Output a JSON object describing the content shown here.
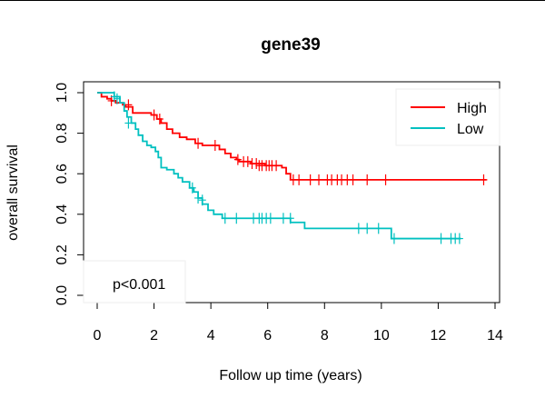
{
  "chart_data": {
    "type": "line",
    "title": "gene39",
    "xlabel": "Follow up time (years)",
    "ylabel": "overall survival",
    "xlim": [
      0,
      14
    ],
    "ylim": [
      0,
      1
    ],
    "x_ticks": [
      "0",
      "2",
      "4",
      "6",
      "8",
      "10",
      "12",
      "14"
    ],
    "y_ticks": [
      "0.0",
      "0.2",
      "0.4",
      "0.6",
      "0.8",
      "1.0"
    ],
    "grid": false,
    "legend_position": "top-right",
    "annotation": "p<0.001",
    "series": [
      {
        "name": "High",
        "color": "#ff0000",
        "steps": [
          [
            0,
            1.0
          ],
          [
            0.15,
            0.98
          ],
          [
            0.35,
            0.97
          ],
          [
            0.5,
            0.96
          ],
          [
            0.65,
            0.95
          ],
          [
            0.9,
            0.94
          ],
          [
            1.0,
            0.93
          ],
          [
            1.25,
            0.9
          ],
          [
            1.9,
            0.89
          ],
          [
            2.1,
            0.87
          ],
          [
            2.25,
            0.85
          ],
          [
            2.45,
            0.82
          ],
          [
            2.65,
            0.8
          ],
          [
            2.9,
            0.78
          ],
          [
            3.15,
            0.77
          ],
          [
            3.45,
            0.75
          ],
          [
            3.7,
            0.74
          ],
          [
            4.3,
            0.72
          ],
          [
            4.5,
            0.7
          ],
          [
            4.7,
            0.68
          ],
          [
            4.9,
            0.67
          ],
          [
            5.0,
            0.66
          ],
          [
            5.4,
            0.65
          ],
          [
            5.9,
            0.64
          ],
          [
            6.5,
            0.63
          ],
          [
            6.65,
            0.6
          ],
          [
            6.8,
            0.57
          ],
          [
            13.7,
            0.57
          ]
        ],
        "censor": [
          [
            0.5,
            0.96
          ],
          [
            1.1,
            0.94
          ],
          [
            2.0,
            0.89
          ],
          [
            2.2,
            0.87
          ],
          [
            3.55,
            0.75
          ],
          [
            4.15,
            0.74
          ],
          [
            4.95,
            0.67
          ],
          [
            5.15,
            0.66
          ],
          [
            5.3,
            0.66
          ],
          [
            5.45,
            0.65
          ],
          [
            5.6,
            0.65
          ],
          [
            5.7,
            0.64
          ],
          [
            5.8,
            0.64
          ],
          [
            5.95,
            0.64
          ],
          [
            6.05,
            0.64
          ],
          [
            6.15,
            0.64
          ],
          [
            6.3,
            0.64
          ],
          [
            6.9,
            0.57
          ],
          [
            7.1,
            0.57
          ],
          [
            7.5,
            0.57
          ],
          [
            7.8,
            0.57
          ],
          [
            8.1,
            0.57
          ],
          [
            8.25,
            0.57
          ],
          [
            8.45,
            0.57
          ],
          [
            8.6,
            0.57
          ],
          [
            8.8,
            0.57
          ],
          [
            9.0,
            0.57
          ],
          [
            9.5,
            0.57
          ],
          [
            10.15,
            0.57
          ],
          [
            13.6,
            0.57
          ]
        ]
      },
      {
        "name": "Low",
        "color": "#00c0c0",
        "steps": [
          [
            0,
            1.0
          ],
          [
            0.1,
            1.0
          ],
          [
            0.6,
            0.98
          ],
          [
            0.8,
            0.95
          ],
          [
            0.95,
            0.91
          ],
          [
            1.05,
            0.88
          ],
          [
            1.2,
            0.85
          ],
          [
            1.35,
            0.82
          ],
          [
            1.45,
            0.79
          ],
          [
            1.6,
            0.76
          ],
          [
            1.75,
            0.74
          ],
          [
            1.9,
            0.73
          ],
          [
            2.05,
            0.71
          ],
          [
            2.15,
            0.68
          ],
          [
            2.25,
            0.63
          ],
          [
            2.45,
            0.62
          ],
          [
            2.7,
            0.6
          ],
          [
            2.85,
            0.58
          ],
          [
            3.0,
            0.56
          ],
          [
            3.25,
            0.53
          ],
          [
            3.4,
            0.51
          ],
          [
            3.55,
            0.48
          ],
          [
            3.7,
            0.45
          ],
          [
            3.9,
            0.42
          ],
          [
            4.1,
            0.4
          ],
          [
            4.4,
            0.38
          ],
          [
            5.4,
            0.38
          ],
          [
            6.8,
            0.36
          ],
          [
            7.3,
            0.33
          ],
          [
            10.3,
            0.33
          ],
          [
            10.35,
            0.28
          ],
          [
            12.8,
            0.28
          ]
        ],
        "censor": [
          [
            0.6,
            0.98
          ],
          [
            0.7,
            0.97
          ],
          [
            1.1,
            0.85
          ],
          [
            3.35,
            0.53
          ],
          [
            3.55,
            0.48
          ],
          [
            3.7,
            0.47
          ],
          [
            4.5,
            0.38
          ],
          [
            4.9,
            0.38
          ],
          [
            5.5,
            0.38
          ],
          [
            5.7,
            0.38
          ],
          [
            5.8,
            0.38
          ],
          [
            5.95,
            0.38
          ],
          [
            6.1,
            0.38
          ],
          [
            6.55,
            0.38
          ],
          [
            6.8,
            0.38
          ],
          [
            9.2,
            0.33
          ],
          [
            9.5,
            0.33
          ],
          [
            9.9,
            0.33
          ],
          [
            10.45,
            0.28
          ],
          [
            12.1,
            0.28
          ],
          [
            12.45,
            0.28
          ],
          [
            12.6,
            0.28
          ],
          [
            12.75,
            0.28
          ]
        ]
      }
    ]
  }
}
